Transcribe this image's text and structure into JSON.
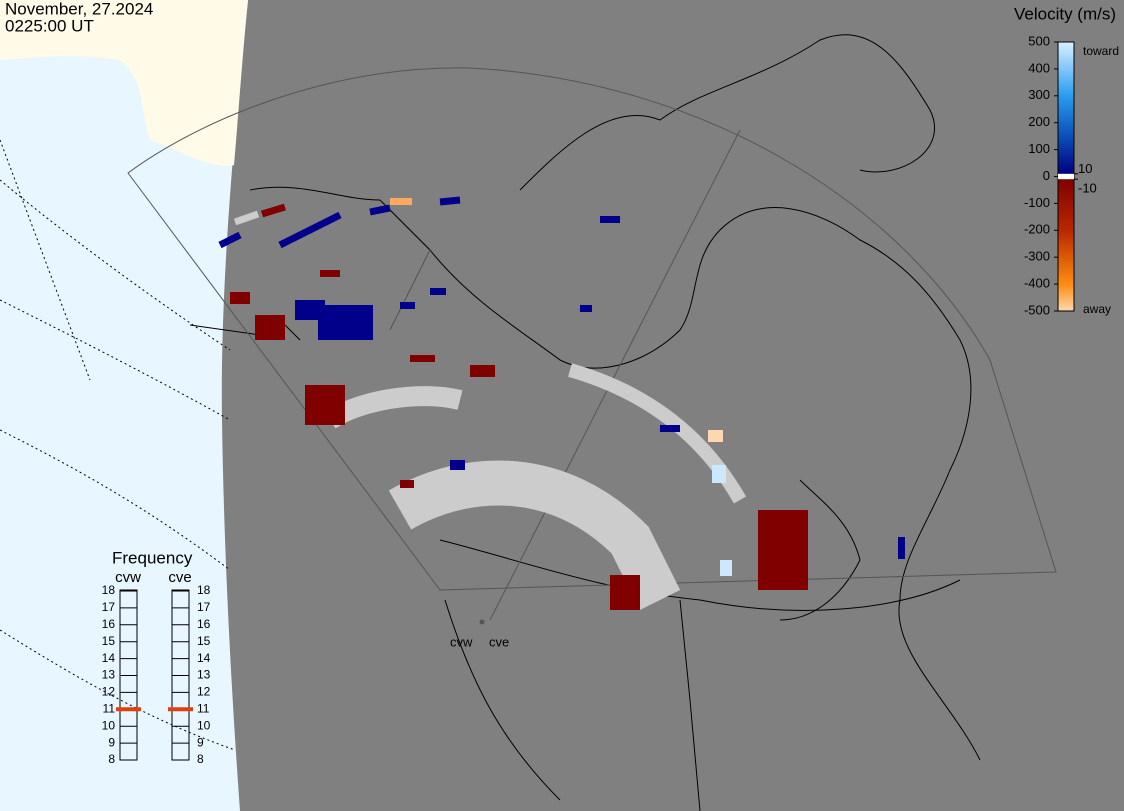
{
  "header": {
    "date": "November, 27.2024",
    "time": "0225:00 UT"
  },
  "colorbar": {
    "title": "Velocity (m/s)",
    "range": [
      500,
      -500
    ],
    "ticks": [
      500,
      400,
      300,
      200,
      100,
      0,
      -100,
      -200,
      -300,
      -400,
      -500
    ],
    "inner_ticks": [
      10,
      -10
    ],
    "toward": "toward",
    "away": "away",
    "stops": [
      {
        "value": 500,
        "color": "#d8f0ff"
      },
      {
        "value": 300,
        "color": "#2a9cf0"
      },
      {
        "value": 150,
        "color": "#0a50b8"
      },
      {
        "value": 10,
        "color": "#000080"
      },
      {
        "value": -10,
        "color": "#800000"
      },
      {
        "value": -200,
        "color": "#b82800"
      },
      {
        "value": -400,
        "color": "#ff8c10"
      },
      {
        "value": -500,
        "color": "#ffd8b0"
      }
    ]
  },
  "frequency": {
    "title": "Frequency",
    "range": [
      8,
      18
    ],
    "ticks": [
      18,
      17,
      16,
      15,
      14,
      13,
      12,
      11,
      10,
      9,
      8
    ],
    "marker_color": "#e04010",
    "radars": [
      {
        "name": "cvw",
        "value": 11
      },
      {
        "name": "cve",
        "value": 11
      }
    ]
  },
  "map": {
    "sites": [
      "cvw",
      "cve"
    ]
  }
}
